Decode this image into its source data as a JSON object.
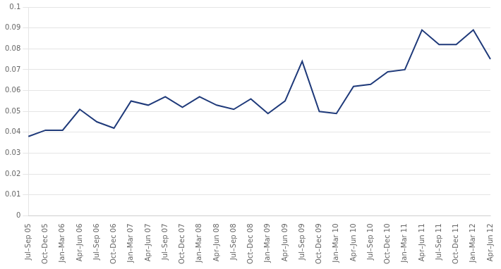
{
  "chart_data": {
    "type": "line",
    "categories": [
      "Jul–Sep 05",
      "Oct–Dec 05",
      "Jan–Mar 06",
      "Apr–Jun 06",
      "Jul–Sep 06",
      "Oct–Dec 06",
      "Jan–Mar 07",
      "Apr–Jun 07",
      "Jul–Sep 07",
      "Oct–Dec 07",
      "Jan–Mar 08",
      "Apr–Jun 08",
      "Jul–Sep 08",
      "Oct–Dec 08",
      "Jan–Mar 09",
      "Apr–Jun 09",
      "Jul–Sep 09",
      "Oct–Dec 09",
      "Jan–Mar 10",
      "Apr–Jun 10",
      "Jul–Sep 10",
      "Oct–Dec 10",
      "Jan–Mar 11",
      "Apr–Jun 11",
      "Jul–Sep 11",
      "Oct–Dec 11",
      "Jan–Mar 12",
      "Apr–Jun 12"
    ],
    "values": [
      0.038,
      0.041,
      0.041,
      0.051,
      0.045,
      0.042,
      0.055,
      0.053,
      0.057,
      0.052,
      0.057,
      0.053,
      0.051,
      0.056,
      0.049,
      0.055,
      0.074,
      0.05,
      0.049,
      0.062,
      0.063,
      0.069,
      0.07,
      0.089,
      0.082,
      0.082,
      0.089,
      0.075
    ],
    "color": "#1F3A7A",
    "ylim": [
      0,
      0.1
    ],
    "yticks": [
      0,
      0.01,
      0.02,
      0.03,
      0.04,
      0.05,
      0.06,
      0.07,
      0.08,
      0.09,
      0.1
    ],
    "grid": true
  }
}
